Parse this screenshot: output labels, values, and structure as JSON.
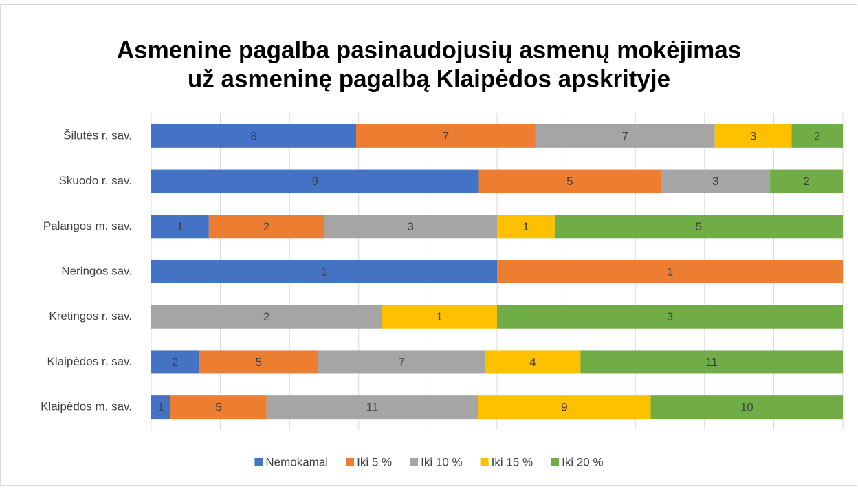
{
  "chart_data": {
    "type": "stacked_bar_100",
    "orientation": "horizontal",
    "title": [
      "Asmenine pagalba pasinaudojusių asmenų mokėjimas",
      "už asmeninę pagalbą Klaipėdos apskrityje"
    ],
    "categories": [
      "Šilutės r. sav.",
      "Skuodo r. sav.",
      "Palangos m. sav.",
      "Neringos sav.",
      "Kretingos r. sav.",
      "Klaipėdos r. sav.",
      "Klaipėdos m. sav."
    ],
    "series": [
      {
        "name": "Nemokamai",
        "color": "#4472c4",
        "values": [
          8,
          9,
          1,
          1,
          null,
          2,
          1
        ]
      },
      {
        "name": "Iki 5 %",
        "color": "#ed7d31",
        "values": [
          7,
          5,
          2,
          1,
          null,
          5,
          5
        ]
      },
      {
        "name": "Iki 10 %",
        "color": "#a5a5a5",
        "values": [
          7,
          3,
          3,
          null,
          2,
          7,
          11
        ]
      },
      {
        "name": "Iki 15 %",
        "color": "#ffc000",
        "values": [
          3,
          null,
          1,
          null,
          1,
          4,
          9
        ]
      },
      {
        "name": "Iki 20 %",
        "color": "#70ad47",
        "values": [
          2,
          2,
          5,
          null,
          3,
          11,
          10
        ]
      }
    ],
    "xlim": [
      0,
      100
    ],
    "xticks": [
      0,
      10,
      20,
      30,
      40,
      50,
      60,
      70,
      80,
      90,
      100
    ],
    "tick_labels": false,
    "grid": true,
    "legend": "bottom"
  }
}
